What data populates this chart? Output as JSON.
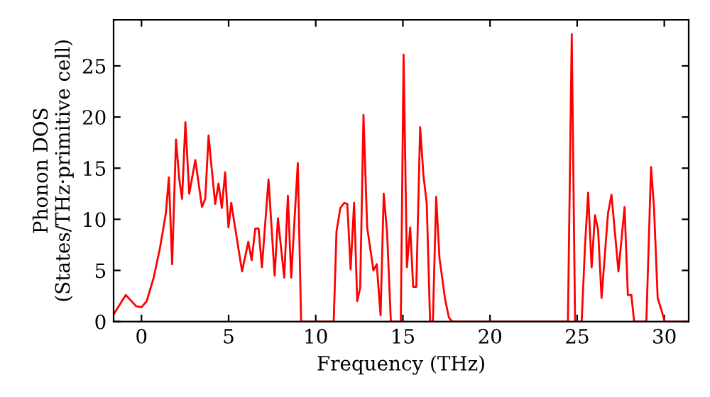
{
  "chart_data": {
    "type": "line",
    "xlabel": "Frequency (THz)",
    "ylabel": "Phonon DOS\n(States/THz·primitive cell)",
    "x": [
      -1.6,
      -0.9,
      -0.3,
      0,
      0.3,
      0.7,
      1.05,
      1.4,
      1.57,
      1.76,
      1.98,
      2.17,
      2.33,
      2.52,
      2.74,
      3.09,
      3.47,
      3.66,
      3.85,
      4.01,
      4.23,
      4.42,
      4.61,
      4.8,
      4.99,
      5.15,
      5.77,
      6.13,
      6.32,
      6.53,
      6.72,
      6.91,
      7.29,
      7.64,
      7.83,
      8.19,
      8.4,
      8.59,
      8.97,
      9.16,
      11.03,
      11.19,
      11.41,
      11.63,
      11.81,
      12.0,
      12.2,
      12.38,
      12.55,
      12.74,
      12.95,
      13.31,
      13.5,
      13.72,
      13.9,
      14.09,
      14.31,
      14.88,
      15.04,
      15.23,
      15.42,
      15.59,
      15.77,
      15.99,
      16.18,
      16.37,
      16.56,
      16.72,
      16.91,
      17.1,
      17.42,
      17.64,
      17.83,
      24.47,
      24.69,
      24.88,
      25.26,
      25.45,
      25.63,
      25.83,
      26.02,
      26.2,
      26.4,
      26.77,
      26.97,
      27.37,
      27.72,
      27.91,
      28.11,
      28.27,
      28.97,
      29.24,
      29.41,
      29.62,
      29.84,
      30.02,
      31.4
    ],
    "series": [
      {
        "color": "#ff0000",
        "values": [
          0.7,
          2.6,
          1.5,
          1.4,
          2.0,
          4.3,
          7.1,
          10.6,
          14.1,
          5.6,
          17.8,
          13.9,
          12.0,
          19.5,
          12.5,
          15.8,
          11.2,
          12.0,
          18.2,
          15.3,
          11.5,
          13.5,
          11.1,
          14.6,
          9.2,
          11.6,
          4.9,
          7.8,
          6.0,
          9.1,
          9.1,
          5.3,
          13.9,
          4.5,
          10.1,
          4.3,
          12.3,
          4.3,
          15.5,
          0,
          0,
          8.8,
          11.1,
          11.6,
          11.5,
          5.1,
          11.6,
          2.0,
          3.3,
          20.2,
          9.2,
          5.0,
          5.6,
          0.6,
          12.5,
          8.8,
          0,
          0,
          26.1,
          5.3,
          9.2,
          3.4,
          3.4,
          19.0,
          14.3,
          11.5,
          0,
          0,
          12.2,
          6.2,
          2.2,
          0.4,
          0,
          0,
          28.1,
          0,
          0,
          7.4,
          12.6,
          5.3,
          10.4,
          9.0,
          2.3,
          10.6,
          12.4,
          4.9,
          11.2,
          2.6,
          2.6,
          0,
          0,
          15.1,
          11.1,
          2.3,
          1.1,
          0,
          0
        ]
      }
    ],
    "xlim": [
      -1.6,
      31.4
    ],
    "ylim": [
      0,
      29.5
    ],
    "xticks": [
      0,
      5,
      10,
      15,
      20,
      25,
      30
    ],
    "yticks": [
      0,
      5,
      10,
      15,
      20,
      25
    ],
    "grid": false,
    "legend": false,
    "marker": "none",
    "line_style": "solid"
  }
}
